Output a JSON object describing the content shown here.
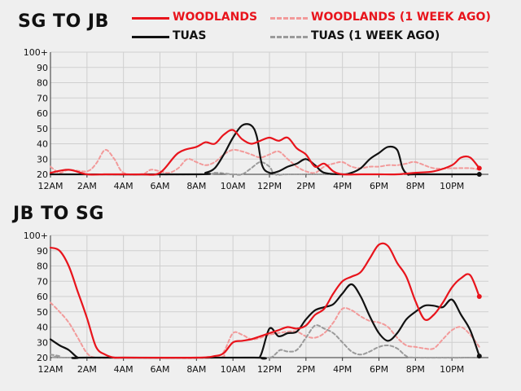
{
  "legend": [
    {
      "label": "WOODLANDS",
      "color": "#e8141c",
      "dashed": false
    },
    {
      "label": "WOODLANDS (1 WEEK AGO)",
      "color": "#f29a9a",
      "dashed": true
    },
    {
      "label": "TUAS",
      "color": "#111111",
      "dashed": false
    },
    {
      "label": "TUAS (1 WEEK AGO)",
      "color": "#9a9a9a",
      "dashed": true
    }
  ],
  "chart_data": [
    {
      "type": "line",
      "title": "SG TO JB",
      "x_ticks": [
        "12AM",
        "2AM",
        "4AM",
        "6AM",
        "8AM",
        "10AM",
        "12PM",
        "2PM",
        "4PM",
        "6PM",
        "8PM",
        "10PM"
      ],
      "y_ticks": [
        "20",
        "30",
        "40",
        "50",
        "60",
        "70",
        "80",
        "90",
        "100+"
      ],
      "ylim": [
        20,
        100
      ],
      "xlim": [
        0,
        24
      ],
      "grid": true,
      "series": [
        {
          "name": "WOODLANDS",
          "color": "#e8141c",
          "dashed": false,
          "end_dot": true,
          "points": [
            [
              0,
              21
            ],
            [
              1,
              23
            ],
            [
              2,
              20
            ],
            [
              3,
              20
            ],
            [
              4,
              20
            ],
            [
              5,
              20
            ],
            [
              6,
              21
            ],
            [
              7,
              34
            ],
            [
              8,
              38
            ],
            [
              8.5,
              41
            ],
            [
              9,
              40
            ],
            [
              9.5,
              46
            ],
            [
              10,
              49
            ],
            [
              10.5,
              43
            ],
            [
              11,
              40
            ],
            [
              11.5,
              42
            ],
            [
              12,
              44
            ],
            [
              12.5,
              42
            ],
            [
              13,
              44
            ],
            [
              13.5,
              37
            ],
            [
              14,
              33
            ],
            [
              14.5,
              25
            ],
            [
              15,
              27
            ],
            [
              15.5,
              22
            ],
            [
              16,
              20
            ],
            [
              17,
              20
            ],
            [
              18,
              20
            ],
            [
              19,
              20
            ],
            [
              20,
              21
            ],
            [
              21,
              22
            ],
            [
              22,
              26
            ],
            [
              22.5,
              31
            ],
            [
              23,
              31
            ],
            [
              23.5,
              24
            ]
          ]
        },
        {
          "name": "WOODLANDS (1 WEEK AGO)",
          "color": "#f29a9a",
          "dashed": true,
          "end_dot": false,
          "points": [
            [
              0,
              25
            ],
            [
              0.5,
              21
            ],
            [
              1,
              23
            ],
            [
              2,
              22
            ],
            [
              2.5,
              27
            ],
            [
              3,
              36
            ],
            [
              3.5,
              30
            ],
            [
              4,
              21
            ],
            [
              5,
              20
            ],
            [
              5.5,
              23
            ],
            [
              6,
              22
            ],
            [
              6.5,
              21
            ],
            [
              7,
              24
            ],
            [
              7.5,
              30
            ],
            [
              8,
              28
            ],
            [
              8.5,
              26
            ],
            [
              9,
              28
            ],
            [
              9.5,
              33
            ],
            [
              10,
              36
            ],
            [
              10.5,
              35
            ],
            [
              11,
              33
            ],
            [
              11.5,
              31
            ],
            [
              12,
              33
            ],
            [
              12.5,
              35
            ],
            [
              13,
              30
            ],
            [
              13.5,
              25
            ],
            [
              14,
              22
            ],
            [
              14.5,
              21
            ],
            [
              15,
              25
            ],
            [
              15.5,
              27
            ],
            [
              16,
              28
            ],
            [
              16.5,
              25
            ],
            [
              17,
              24
            ],
            [
              17.5,
              25
            ],
            [
              18,
              25
            ],
            [
              18.5,
              26
            ],
            [
              19,
              26
            ],
            [
              19.5,
              27
            ],
            [
              20,
              28
            ],
            [
              21,
              24
            ],
            [
              22,
              24
            ],
            [
              23,
              24
            ],
            [
              23.5,
              23
            ]
          ]
        },
        {
          "name": "TUAS",
          "color": "#111111",
          "dashed": false,
          "end_dot": true,
          "points": [
            [
              0,
              20
            ],
            [
              8,
              20
            ],
            [
              8.5,
              21
            ],
            [
              9,
              24
            ],
            [
              9.5,
              33
            ],
            [
              10,
              44
            ],
            [
              10.5,
              52
            ],
            [
              11,
              52
            ],
            [
              11.3,
              45
            ],
            [
              11.6,
              26
            ],
            [
              12,
              21
            ],
            [
              12.5,
              22
            ],
            [
              13,
              25
            ],
            [
              13.5,
              27
            ],
            [
              14,
              30
            ],
            [
              14.5,
              26
            ],
            [
              15,
              21
            ],
            [
              16,
              20
            ],
            [
              16.5,
              21
            ],
            [
              17,
              24
            ],
            [
              17.5,
              30
            ],
            [
              18,
              34
            ],
            [
              18.5,
              38
            ],
            [
              19,
              36
            ],
            [
              19.3,
              24
            ],
            [
              19.6,
              20
            ],
            [
              20,
              20
            ],
            [
              23.5,
              20
            ]
          ]
        },
        {
          "name": "TUAS (1 WEEK AGO)",
          "color": "#9a9a9a",
          "dashed": true,
          "end_dot": false,
          "points": [
            [
              0,
              20
            ],
            [
              8,
              20
            ],
            [
              9,
              21
            ],
            [
              10,
              20
            ],
            [
              10.5,
              20
            ],
            [
              11,
              24
            ],
            [
              11.5,
              28
            ],
            [
              12,
              25
            ],
            [
              12.3,
              20
            ],
            [
              13,
              20
            ],
            [
              15,
              20
            ],
            [
              16,
              20
            ],
            [
              20,
              20
            ],
            [
              21,
              20
            ],
            [
              23.5,
              20
            ]
          ]
        }
      ]
    },
    {
      "type": "line",
      "title": "JB TO SG",
      "x_ticks": [
        "12AM",
        "2AM",
        "4AM",
        "6AM",
        "8AM",
        "10AM",
        "12PM",
        "2PM",
        "4PM",
        "6PM",
        "8PM",
        "10PM"
      ],
      "y_ticks": [
        "20",
        "30",
        "40",
        "50",
        "60",
        "70",
        "80",
        "90",
        "100+"
      ],
      "ylim": [
        20,
        100
      ],
      "xlim": [
        0,
        24
      ],
      "grid": true,
      "series": [
        {
          "name": "WOODLANDS",
          "color": "#e8141c",
          "dashed": false,
          "end_dot": true,
          "points": [
            [
              0,
              92
            ],
            [
              0.5,
              90
            ],
            [
              1,
              80
            ],
            [
              1.5,
              63
            ],
            [
              2,
              46
            ],
            [
              2.5,
              27
            ],
            [
              3,
              22
            ],
            [
              3.5,
              20
            ],
            [
              4,
              20
            ],
            [
              8,
              20
            ],
            [
              9,
              21
            ],
            [
              9.5,
              23
            ],
            [
              10,
              30
            ],
            [
              10.5,
              31
            ],
            [
              11,
              32
            ],
            [
              11.5,
              34
            ],
            [
              12,
              36
            ],
            [
              12.5,
              38
            ],
            [
              13,
              40
            ],
            [
              13.5,
              39
            ],
            [
              14,
              41
            ],
            [
              14.5,
              48
            ],
            [
              15,
              52
            ],
            [
              15.5,
              62
            ],
            [
              16,
              70
            ],
            [
              16.5,
              73
            ],
            [
              17,
              76
            ],
            [
              17.5,
              85
            ],
            [
              18,
              94
            ],
            [
              18.5,
              93
            ],
            [
              19,
              82
            ],
            [
              19.5,
              73
            ],
            [
              20,
              57
            ],
            [
              20.5,
              45
            ],
            [
              21,
              48
            ],
            [
              21.5,
              56
            ],
            [
              22,
              66
            ],
            [
              22.5,
              72
            ],
            [
              23,
              74
            ],
            [
              23.5,
              60
            ]
          ]
        },
        {
          "name": "WOODLANDS (1 WEEK AGO)",
          "color": "#f29a9a",
          "dashed": true,
          "end_dot": false,
          "points": [
            [
              0,
              56
            ],
            [
              0.5,
              50
            ],
            [
              1,
              43
            ],
            [
              1.5,
              33
            ],
            [
              2,
              23
            ],
            [
              2.5,
              20
            ],
            [
              4,
              20
            ],
            [
              9,
              20
            ],
            [
              9.5,
              24
            ],
            [
              10,
              36
            ],
            [
              10.5,
              35
            ],
            [
              11,
              32
            ],
            [
              11.5,
              33
            ],
            [
              12,
              35
            ],
            [
              13,
              37
            ],
            [
              13.5,
              37
            ],
            [
              14,
              34
            ],
            [
              14.5,
              33
            ],
            [
              15,
              36
            ],
            [
              15.5,
              43
            ],
            [
              16,
              52
            ],
            [
              16.5,
              51
            ],
            [
              17,
              47
            ],
            [
              17.5,
              44
            ],
            [
              18,
              43
            ],
            [
              18.5,
              40
            ],
            [
              19,
              33
            ],
            [
              19.5,
              28
            ],
            [
              20,
              27
            ],
            [
              20.5,
              26
            ],
            [
              21,
              26
            ],
            [
              21.5,
              32
            ],
            [
              22,
              38
            ],
            [
              22.5,
              40
            ],
            [
              23,
              35
            ],
            [
              23.5,
              27
            ]
          ]
        },
        {
          "name": "TUAS",
          "color": "#111111",
          "dashed": false,
          "end_dot": true,
          "points": [
            [
              0,
              32
            ],
            [
              0.5,
              28
            ],
            [
              1,
              25
            ],
            [
              1.5,
              20
            ],
            [
              2,
              20
            ],
            [
              11,
              20
            ],
            [
              11.5,
              21
            ],
            [
              12,
              39
            ],
            [
              12.5,
              34
            ],
            [
              13,
              36
            ],
            [
              13.5,
              37
            ],
            [
              14,
              45
            ],
            [
              14.5,
              51
            ],
            [
              15,
              53
            ],
            [
              15.5,
              55
            ],
            [
              16,
              62
            ],
            [
              16.5,
              68
            ],
            [
              17,
              60
            ],
            [
              17.5,
              47
            ],
            [
              18,
              36
            ],
            [
              18.5,
              31
            ],
            [
              19,
              36
            ],
            [
              19.5,
              45
            ],
            [
              20,
              50
            ],
            [
              20.5,
              54
            ],
            [
              21,
              54
            ],
            [
              21.5,
              53
            ],
            [
              22,
              58
            ],
            [
              22.5,
              48
            ],
            [
              23,
              38
            ],
            [
              23.5,
              21
            ]
          ]
        },
        {
          "name": "TUAS (1 WEEK AGO)",
          "color": "#9a9a9a",
          "dashed": true,
          "end_dot": false,
          "points": [
            [
              0,
              22
            ],
            [
              0.5,
              21
            ],
            [
              1,
              20
            ],
            [
              11,
              20
            ],
            [
              12,
              20
            ],
            [
              12.3,
              22
            ],
            [
              12.6,
              25
            ],
            [
              13,
              24
            ],
            [
              13.5,
              25
            ],
            [
              14,
              33
            ],
            [
              14.5,
              41
            ],
            [
              15,
              39
            ],
            [
              15.5,
              36
            ],
            [
              16,
              30
            ],
            [
              16.5,
              24
            ],
            [
              17,
              22
            ],
            [
              17.5,
              24
            ],
            [
              18,
              27
            ],
            [
              18.5,
              28
            ],
            [
              19,
              26
            ],
            [
              19.5,
              21
            ],
            [
              20,
              20
            ],
            [
              23.5,
              20
            ]
          ]
        }
      ]
    }
  ]
}
